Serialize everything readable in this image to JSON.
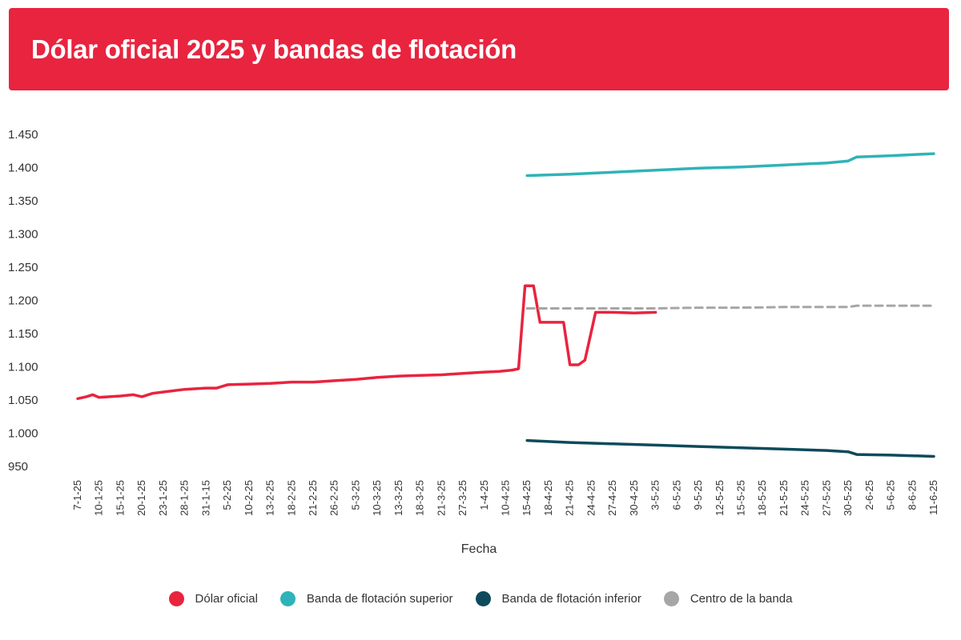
{
  "chart_data": {
    "type": "line",
    "title": "Dólar oficial 2025 y bandas de flotación",
    "xlabel": "Fecha",
    "ylabel": "",
    "ylim": [
      950,
      1450
    ],
    "y_ticks": [
      "1.450",
      "1.400",
      "1.350",
      "1.300",
      "1.250",
      "1.200",
      "1.150",
      "1.100",
      "1.050",
      "1.000",
      "950"
    ],
    "grid": false,
    "legend_position": "bottom",
    "categories": [
      "7-1-25",
      "10-1-25",
      "15-1-25",
      "20-1-25",
      "23-1-25",
      "28-1-25",
      "31-1-15",
      "5-2-25",
      "10-2-25",
      "13-2-25",
      "18-2-25",
      "21-2-25",
      "26-2-25",
      "5-3-25",
      "10-3-25",
      "13-3-25",
      "18-3-25",
      "21-3-25",
      "27-3-25",
      "1-4-25",
      "10-4-25",
      "15-4-25",
      "18-4-25",
      "21-4-25",
      "24-4-25",
      "27-4-25",
      "30-4-25",
      "3-5-25",
      "6-5-25",
      "9-5-25",
      "12-5-25",
      "15-5-25",
      "18-5-25",
      "21-5-25",
      "24-5-25",
      "27-5-25",
      "30-5-25",
      "2-6-25",
      "5-6-25",
      "8-6-25",
      "11-6-25"
    ],
    "series": [
      {
        "name": "Dólar oficial",
        "color": "#e8243f",
        "style": "solid",
        "points": [
          [
            0,
            1052
          ],
          [
            0.4,
            1055
          ],
          [
            0.7,
            1058
          ],
          [
            1,
            1054
          ],
          [
            2,
            1056
          ],
          [
            2.6,
            1058
          ],
          [
            3,
            1055
          ],
          [
            3.5,
            1060
          ],
          [
            4,
            1062
          ],
          [
            5,
            1066
          ],
          [
            6,
            1068
          ],
          [
            6.5,
            1068
          ],
          [
            7,
            1073
          ],
          [
            8,
            1074
          ],
          [
            9,
            1075
          ],
          [
            10,
            1077
          ],
          [
            11,
            1077
          ],
          [
            12,
            1079
          ],
          [
            13,
            1081
          ],
          [
            14,
            1084
          ],
          [
            15,
            1086
          ],
          [
            16,
            1087
          ],
          [
            17,
            1088
          ],
          [
            18,
            1090
          ],
          [
            19,
            1092
          ],
          [
            19.7,
            1093
          ],
          [
            20.3,
            1095
          ],
          [
            20.6,
            1097
          ],
          [
            20.9,
            1222
          ],
          [
            21.3,
            1222
          ],
          [
            21.6,
            1167
          ],
          [
            22.7,
            1167
          ],
          [
            23,
            1103
          ],
          [
            23.4,
            1103
          ],
          [
            23.7,
            1110
          ],
          [
            24.2,
            1182
          ],
          [
            25,
            1182
          ],
          [
            26,
            1181
          ],
          [
            27,
            1182
          ]
        ]
      },
      {
        "name": "Banda de flotación superior",
        "color": "#2fb3b8",
        "style": "solid",
        "points": [
          [
            21,
            1388
          ],
          [
            23,
            1390
          ],
          [
            25,
            1393
          ],
          [
            27,
            1396
          ],
          [
            29,
            1399
          ],
          [
            31,
            1401
          ],
          [
            33,
            1404
          ],
          [
            35,
            1407
          ],
          [
            36,
            1410
          ],
          [
            36.4,
            1416
          ],
          [
            38,
            1418
          ],
          [
            40,
            1421
          ]
        ]
      },
      {
        "name": "Banda de flotación inferior",
        "color": "#0d4a5c",
        "style": "solid",
        "points": [
          [
            21,
            989
          ],
          [
            23,
            986
          ],
          [
            25,
            984
          ],
          [
            27,
            982
          ],
          [
            29,
            980
          ],
          [
            31,
            978
          ],
          [
            33,
            976
          ],
          [
            35,
            974
          ],
          [
            36,
            972
          ],
          [
            36.4,
            968
          ],
          [
            38,
            967
          ],
          [
            40,
            965
          ]
        ]
      },
      {
        "name": "Centro de la banda",
        "color": "#a6a6a6",
        "style": "dashed",
        "points": [
          [
            21,
            1188
          ],
          [
            23,
            1188
          ],
          [
            25,
            1188
          ],
          [
            27,
            1188
          ],
          [
            29,
            1189
          ],
          [
            31,
            1189
          ],
          [
            33,
            1190
          ],
          [
            35,
            1190
          ],
          [
            36,
            1190
          ],
          [
            36.4,
            1192
          ],
          [
            38,
            1192
          ],
          [
            40,
            1192
          ]
        ]
      }
    ]
  }
}
